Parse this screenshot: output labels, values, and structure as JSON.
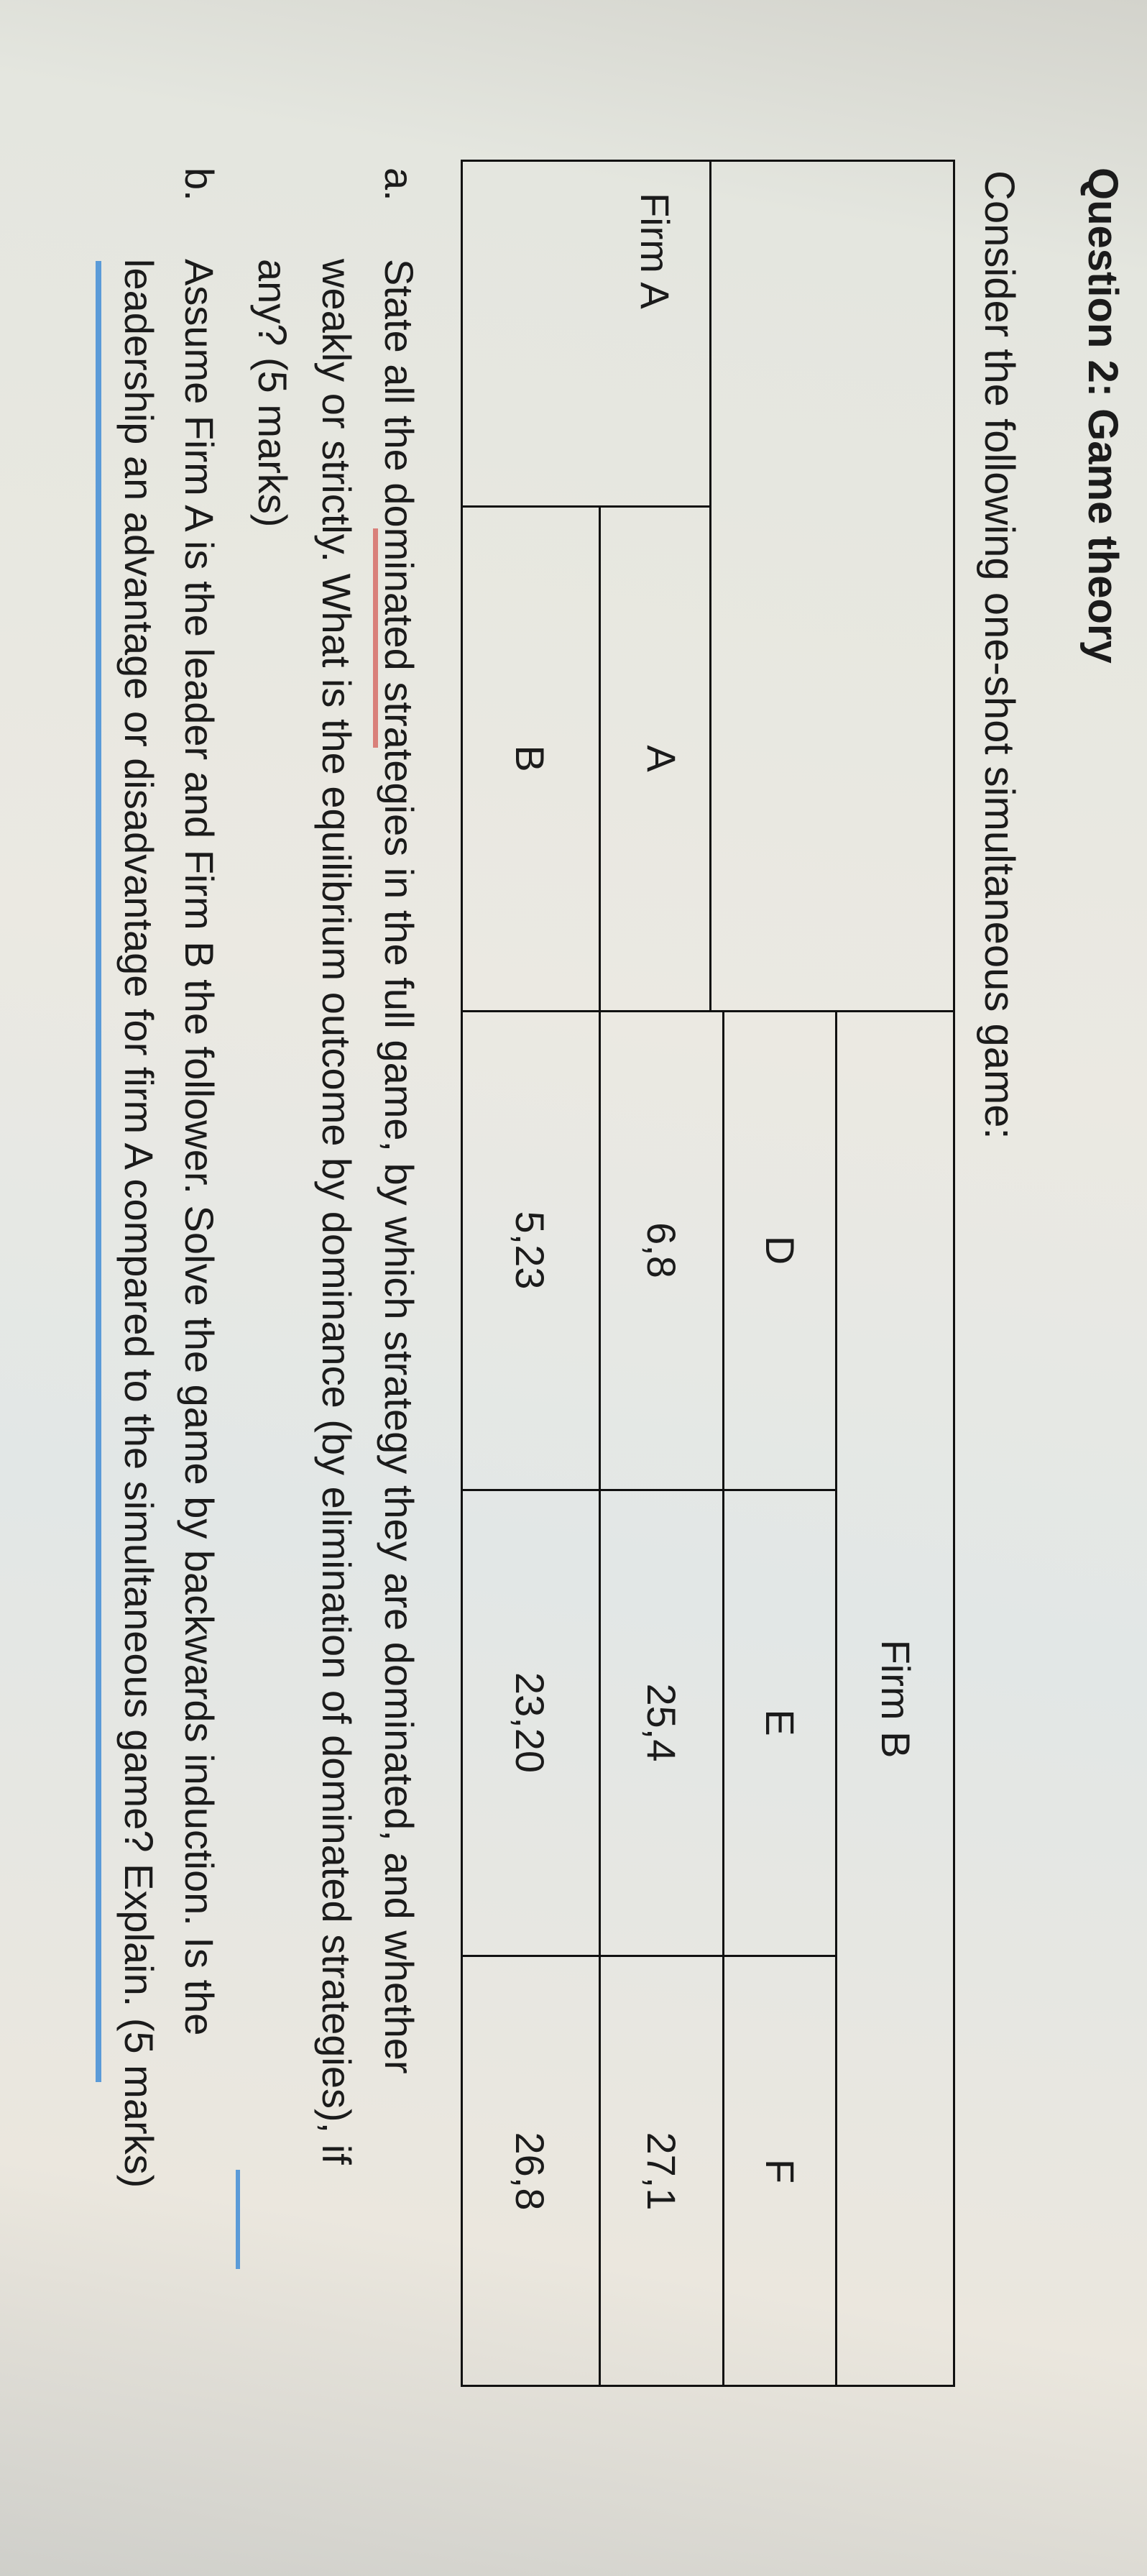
{
  "title": "Question 2: Game theory",
  "intro": "Consider the following one-shot simultaneous game:",
  "table": {
    "row_player": "Firm A",
    "col_player": "Firm B",
    "col_strategies": [
      "D",
      "E",
      "F"
    ],
    "rows": [
      {
        "strategy": "A",
        "payoffs": [
          "6,8",
          "25,4",
          "27,1"
        ]
      },
      {
        "strategy": "B",
        "payoffs": [
          "5,23",
          "23,20",
          "26,8"
        ]
      }
    ]
  },
  "questions": [
    {
      "label": "a.",
      "lines": [
        "State all the dominated strategies in the full game, by which strategy they are dominated, and whether",
        "weakly or strictly. What is the equilibrium outcome by dominance (by elimination of dominated strategies), if",
        "any? (5 marks)"
      ]
    },
    {
      "label": "b.",
      "lines": [
        "Assume Firm A is the leader and Firm B the follower. Solve the game by backwards induction. Is the",
        "leadership an advantage or disadvantage for firm A compared to the simultaneous game? Explain. (5 marks)"
      ]
    }
  ],
  "colors": {
    "spellcheck_underline": "#d9807a",
    "selection_underline": "#5b9bd8"
  }
}
